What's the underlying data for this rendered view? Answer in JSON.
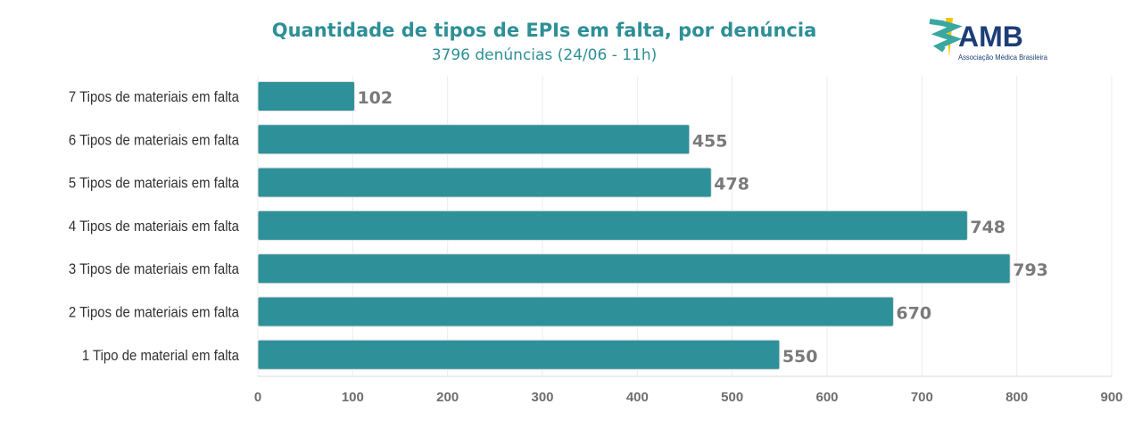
{
  "chart_data": {
    "type": "bar",
    "orientation": "horizontal",
    "title": "Quantidade de tipos de EPIs em falta, por denúncia",
    "subtitle": "3796 denúncias (24/06 - 11h)",
    "categories": [
      "7 Tipos de materiais em falta",
      "6 Tipos de materiais em falta",
      "5 Tipos de materiais em falta",
      "4 Tipos de materiais em falta",
      "3 Tipos de materiais em falta",
      "2 Tipos de materiais em falta",
      "1 Tipo de material em falta"
    ],
    "values": [
      102,
      455,
      478,
      748,
      793,
      670,
      550
    ],
    "xlim": [
      0,
      900
    ],
    "xticks": [
      0,
      100,
      200,
      300,
      400,
      500,
      600,
      700,
      800,
      900
    ],
    "grid": true,
    "bar_color": "#2e9199",
    "label_color": "#7a7a7a"
  },
  "logo": {
    "text": "AMB",
    "tagline": "Associação Médica Brasileira"
  }
}
